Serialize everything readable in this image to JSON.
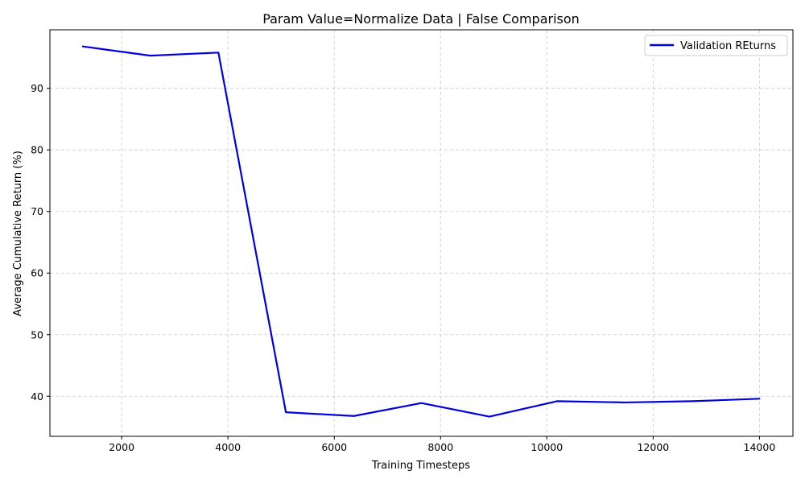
{
  "chart_data": {
    "type": "line",
    "title": "Param Value=Normalize Data | False Comparison",
    "xlabel": "Training Timesteps",
    "ylabel": "Average Cumulative Return (%)",
    "xlim": [
      650,
      14630
    ],
    "ylim": [
      33.5,
      99.5
    ],
    "x_ticks": [
      2000,
      4000,
      6000,
      8000,
      10000,
      12000,
      14000
    ],
    "y_ticks": [
      40,
      50,
      60,
      70,
      80,
      90
    ],
    "grid": true,
    "legend_position": "top-right",
    "series": [
      {
        "name": "Validation REturns",
        "color": "#0000e0",
        "x": [
          1270,
          2540,
          3820,
          5090,
          6370,
          7640,
          8920,
          10190,
          11470,
          12740,
          14000
        ],
        "y": [
          96.8,
          95.3,
          95.8,
          37.4,
          36.8,
          38.9,
          36.7,
          39.2,
          39.0,
          39.2,
          39.6
        ]
      }
    ]
  }
}
